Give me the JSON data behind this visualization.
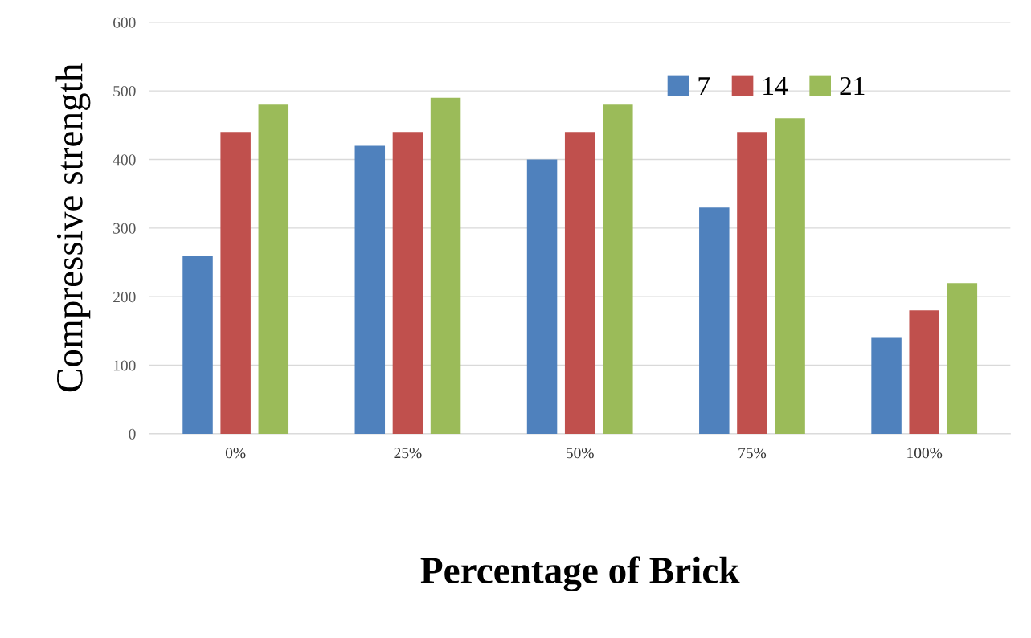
{
  "chart_data": {
    "type": "bar",
    "xlabel": "Percentage of Brick",
    "ylabel": "Compressive strength",
    "categories": [
      "0%",
      "25%",
      "50%",
      "75%",
      "100%"
    ],
    "series": [
      {
        "name": "7",
        "color": "#4f81bd",
        "values": [
          260,
          420,
          400,
          330,
          140
        ]
      },
      {
        "name": "14",
        "color": "#c0504d",
        "values": [
          440,
          440,
          440,
          440,
          180
        ]
      },
      {
        "name": "21",
        "color": "#9bbb59",
        "values": [
          480,
          490,
          480,
          460,
          220
        ]
      }
    ],
    "ylim": [
      0,
      600
    ],
    "yticks": [
      0,
      100,
      200,
      300,
      400,
      500,
      600
    ],
    "grid": "y",
    "legend": "top right"
  }
}
